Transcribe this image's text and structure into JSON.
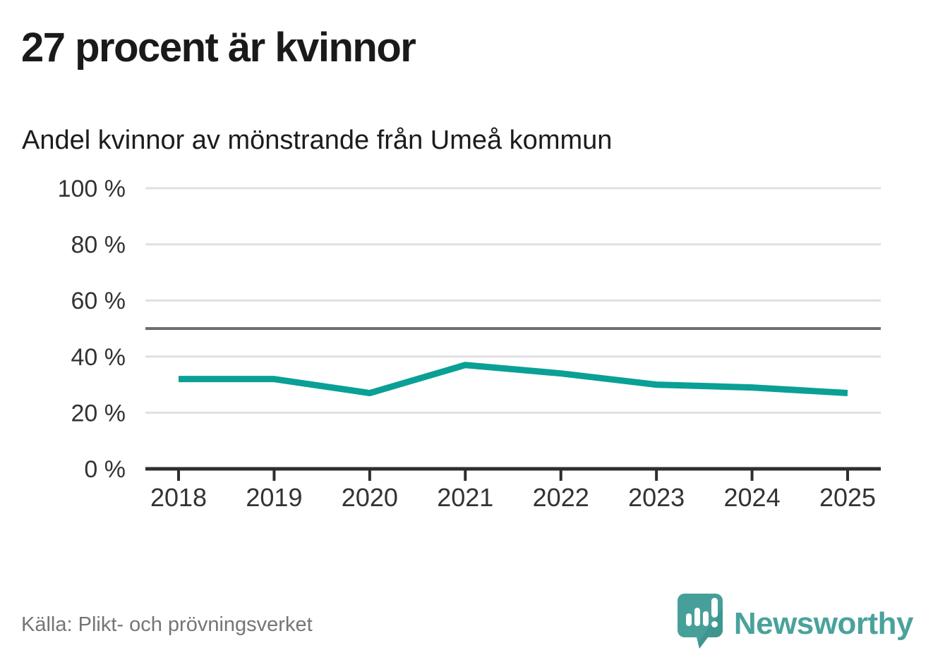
{
  "header": {
    "title": "27 procent är kvinnor",
    "subtitle": "Andel kvinnor av mönstrande från Umeå kommun"
  },
  "chart_data": {
    "type": "line",
    "title": "27 procent är kvinnor",
    "subtitle": "Andel kvinnor av mönstrande från Umeå kommun",
    "categories": [
      "2018",
      "2019",
      "2020",
      "2021",
      "2022",
      "2023",
      "2024",
      "2025"
    ],
    "series": [
      {
        "name": "Andel kvinnor av mönstrande",
        "values": [
          32,
          32,
          27,
          37,
          34,
          30,
          29,
          27
        ]
      }
    ],
    "ylim": [
      0,
      100
    ],
    "yticks": [
      0,
      20,
      40,
      60,
      80,
      100
    ],
    "ytick_suffix": " %",
    "reference_line": {
      "value": 50
    },
    "grid": true,
    "legend_position": "none",
    "colors": {
      "line": "#0aa096",
      "grid": "#e0e0e0",
      "reference": "#6c6c73",
      "axis": "#2e2e2e",
      "tick_text": "#333333"
    }
  },
  "footer": {
    "source": "Källa: Plikt- och prövningsverket",
    "brand": {
      "name": "Newsworthy",
      "color": "#4aa29c",
      "icon_color": "#46a099",
      "icon_shade": "#3b8d87"
    }
  }
}
